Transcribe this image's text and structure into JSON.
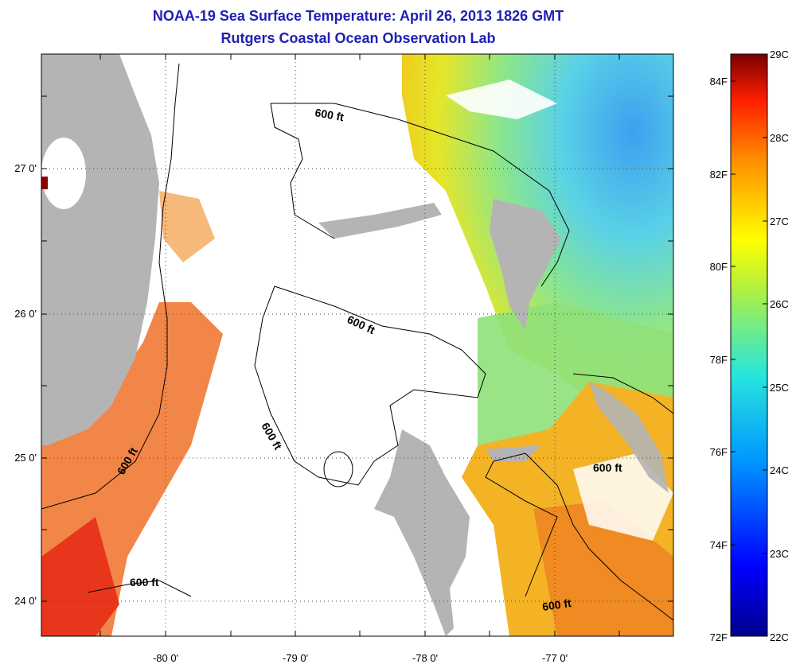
{
  "title": "NOAA-19 Sea Surface Temperature:  April 26, 2013 1826 GMT",
  "subtitle": "Rutgers Coastal Ocean Observation Lab",
  "map": {
    "x_ticks": [
      "-80 0'",
      "-79 0'",
      "-78 0'",
      "-77 0'"
    ],
    "y_ticks": [
      "27 0'",
      "26 0'",
      "25 0'",
      "24 0'"
    ],
    "isobath_label": "600 ft",
    "colors": {
      "land": "#b4b4b4",
      "cloud": "#ffffff",
      "warm": "#ff5a1e",
      "mid": "#f0e61e",
      "cool": "#5ad2e6",
      "cold": "#3c9ef0"
    }
  },
  "colorbar": {
    "celsius": [
      "29C",
      "28C",
      "27C",
      "26C",
      "25C",
      "24C",
      "23C",
      "22C"
    ],
    "fahrenheit": [
      "84F",
      "82F",
      "80F",
      "78F",
      "76F",
      "74F",
      "72F"
    ],
    "range_c": [
      22,
      29
    ]
  }
}
